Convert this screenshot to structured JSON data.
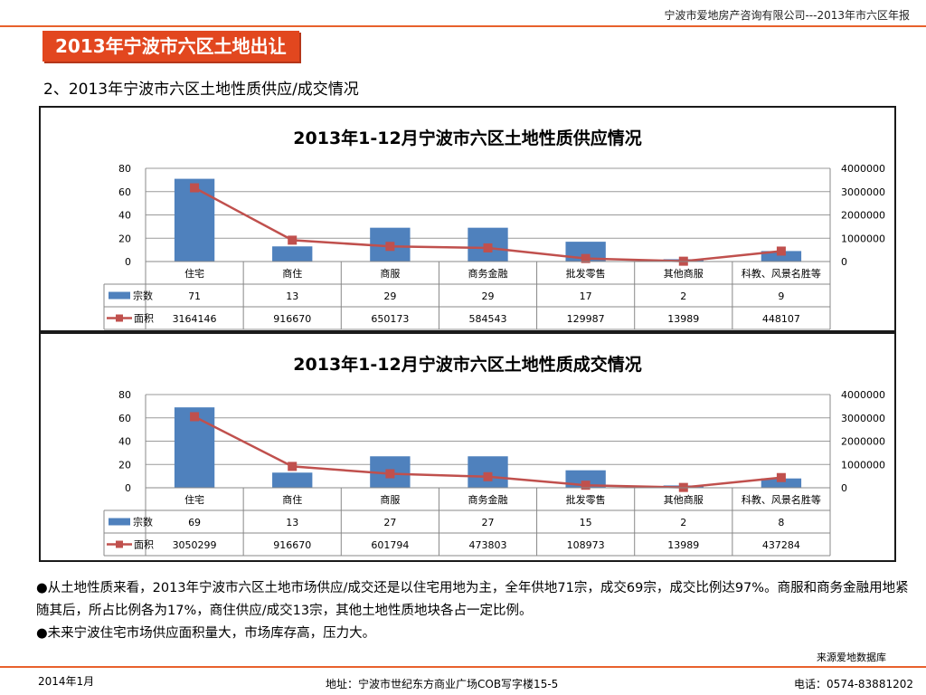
{
  "header": {
    "company": "宁波市爱地房产咨询有限公司---2013年市六区年报",
    "title": "2013年宁波市六区土地出让",
    "subtitle": "2、2013年宁波市六区土地性质供应/成交情况"
  },
  "chart_data": [
    {
      "type": "bar",
      "title": "2013年1-12月宁波市六区土地性质供应情况",
      "categories": [
        "住宅",
        "商住",
        "商服",
        "商务金融",
        "批发零售",
        "其他商服",
        "科教、风景名胜等"
      ],
      "series": [
        {
          "name": "宗数",
          "type": "bar",
          "axis": "left",
          "color": "#4f81bd",
          "values": [
            71,
            13,
            29,
            29,
            17,
            2,
            9
          ]
        },
        {
          "name": "面积",
          "type": "line",
          "axis": "right",
          "color": "#c0504d",
          "values": [
            3164146,
            916670,
            650173,
            584543,
            129987,
            13989,
            448107
          ]
        }
      ],
      "ylim": [
        0,
        80
      ],
      "y2lim": [
        0,
        4000000
      ],
      "yticks": [
        "80",
        "60",
        "40",
        "20",
        "0"
      ],
      "y2ticks": [
        "4000000",
        "3000000",
        "2000000",
        "1000000",
        "0"
      ],
      "legend": "data-table"
    },
    {
      "type": "bar",
      "title": "2013年1-12月宁波市六区土地性质成交情况",
      "categories": [
        "住宅",
        "商住",
        "商服",
        "商务金融",
        "批发零售",
        "其他商服",
        "科教、风景名胜等"
      ],
      "series": [
        {
          "name": "宗数",
          "type": "bar",
          "axis": "left",
          "color": "#4f81bd",
          "values": [
            69,
            13,
            27,
            27,
            15,
            2,
            8
          ]
        },
        {
          "name": "面积",
          "type": "line",
          "axis": "right",
          "color": "#c0504d",
          "values": [
            3050299,
            916670,
            601794,
            473803,
            108973,
            13989,
            437284
          ]
        }
      ],
      "ylim": [
        0,
        80
      ],
      "y2lim": [
        0,
        4000000
      ],
      "yticks": [
        "80",
        "60",
        "40",
        "20",
        "0"
      ],
      "y2ticks": [
        "4000000",
        "3000000",
        "2000000",
        "1000000",
        "0"
      ],
      "legend": "data-table"
    }
  ],
  "notes": [
    "●从土地性质来看，2013年宁波市六区土地市场供应/成交还是以住宅用地为主，全年供地71宗，成交69宗，成交比例达97%。商服和商务金融用地紧随其后，所占比例各为17%，商住供应/成交13宗，其他土地性质地块各占一定比例。",
    "●未来宁波住宅市场供应面积量大，市场库存高，压力大。"
  ],
  "source": "来源爱地数据库",
  "footer": {
    "date": "2014年1月",
    "address": "地址：宁波市世纪东方商业广场COB写字楼15-5",
    "phone": "电话：0574-83881202"
  }
}
